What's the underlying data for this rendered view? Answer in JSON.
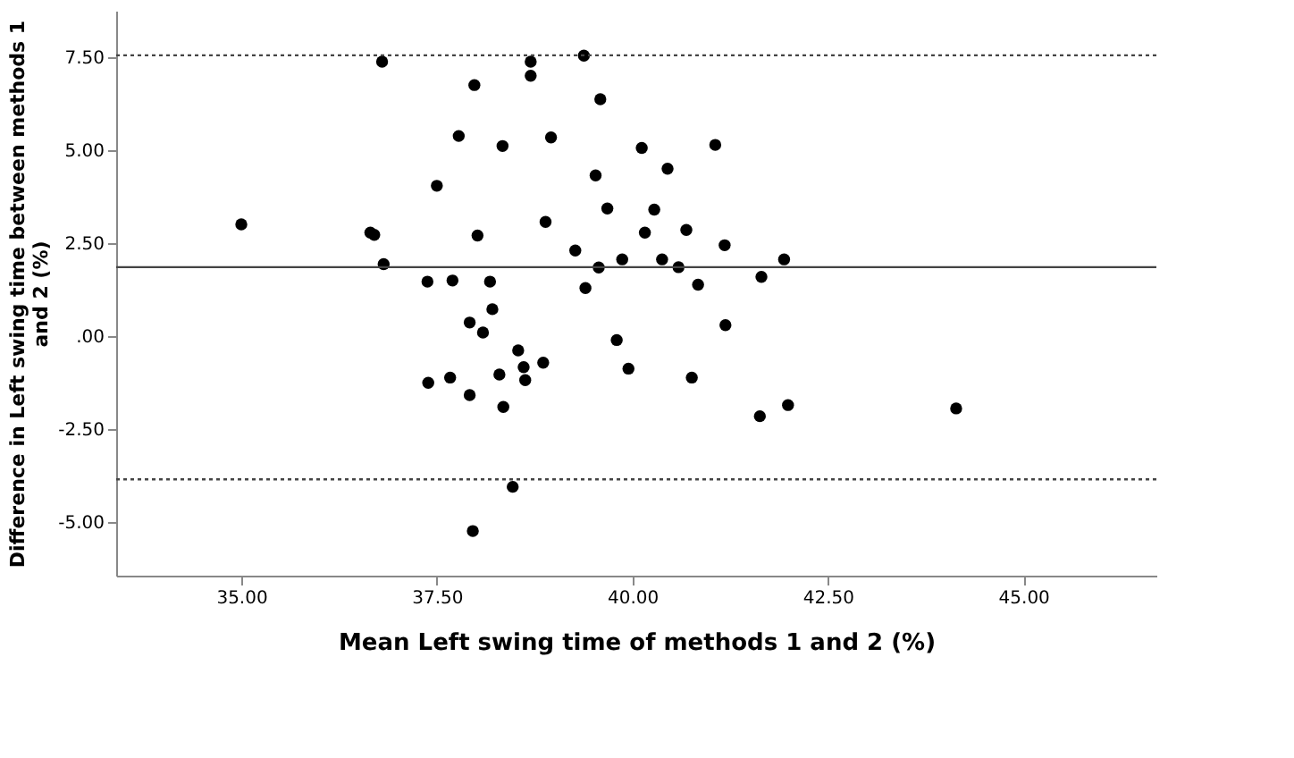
{
  "chart_data": {
    "type": "scatter",
    "xlabel": "Mean Left swing time of methods 1 and 2 (%)",
    "ylabel": "Difference in Left swing time between methods 1 and 2 (%)",
    "x": [
      35.0,
      36.65,
      36.7,
      36.82,
      36.8,
      37.98,
      38.7,
      39.38,
      38.7,
      39.59,
      37.78,
      38.34,
      38.96,
      37.5,
      39.53,
      39.68,
      38.89,
      38.02,
      39.27,
      39.57,
      39.87,
      39.4,
      37.38,
      37.7,
      38.18,
      38.21,
      37.92,
      38.09,
      39.8,
      38.54,
      38.61,
      38.86,
      38.3,
      38.63,
      37.39,
      37.67,
      39.95,
      37.92,
      38.35,
      38.47,
      37.96,
      40.12,
      41.06,
      40.45,
      40.28,
      40.16,
      40.69,
      41.18,
      40.38,
      40.59,
      41.94,
      40.84,
      41.65,
      41.19,
      40.76,
      41.63,
      41.99,
      44.14
    ],
    "series": [
      {
        "color": "#000000",
        "values": [
          3.0,
          2.78,
          2.72,
          1.93,
          7.38,
          6.75,
          7.38,
          7.54,
          7.0,
          6.37,
          5.38,
          5.11,
          5.34,
          4.04,
          4.32,
          3.43,
          3.07,
          2.7,
          2.3,
          1.84,
          2.06,
          1.29,
          1.46,
          1.49,
          1.46,
          0.72,
          0.36,
          0.09,
          -0.11,
          -0.39,
          -0.84,
          -0.72,
          -1.04,
          -1.19,
          -1.26,
          -1.12,
          -0.88,
          -1.59,
          -1.91,
          -4.06,
          -5.25,
          5.06,
          5.14,
          4.5,
          3.4,
          2.78,
          2.85,
          2.44,
          2.06,
          1.85,
          2.06,
          1.38,
          1.59,
          0.29,
          -1.12,
          -2.16,
          -1.86,
          -1.95
        ]
      }
    ],
    "marker": "circle",
    "xlim": [
      33.4,
      46.7
    ],
    "ylim": [
      -6.45,
      8.75
    ],
    "xticks": [
      {
        "value": 35,
        "label": "35.00"
      },
      {
        "value": 37.5,
        "label": "37.50"
      },
      {
        "value": 40,
        "label": "40.00"
      },
      {
        "value": 42.5,
        "label": "42.50"
      },
      {
        "value": 45,
        "label": "45.00"
      }
    ],
    "yticks": [
      {
        "value": -5,
        "label": "-5.00"
      },
      {
        "value": -2.5,
        "label": "-2.50"
      },
      {
        "value": 0,
        "label": ".00"
      },
      {
        "value": 2.5,
        "label": "2.50"
      },
      {
        "value": 5,
        "label": "5.00"
      },
      {
        "value": 7.5,
        "label": "7.50"
      }
    ],
    "ref_lines": [
      {
        "axis": "y",
        "value": 7.55,
        "label": null,
        "color": "#444444",
        "line_style": "dotted"
      },
      {
        "axis": "y",
        "value": 1.85,
        "label": null,
        "color": "#444444",
        "line_style": "solid"
      },
      {
        "axis": "y",
        "value": -3.86,
        "label": null,
        "color": "#444444",
        "line_style": "dotted"
      }
    ],
    "grid": false
  }
}
